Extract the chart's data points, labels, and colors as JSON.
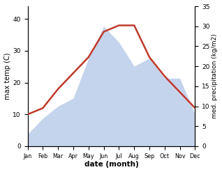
{
  "months": [
    "Jan",
    "Feb",
    "Mar",
    "Apr",
    "May",
    "Jun",
    "Jul",
    "Aug",
    "Sep",
    "Oct",
    "Nov",
    "Dec"
  ],
  "month_indices": [
    1,
    2,
    3,
    4,
    5,
    6,
    7,
    8,
    9,
    10,
    11,
    12
  ],
  "temperature": [
    10,
    12,
    18,
    23,
    28,
    36,
    38,
    38,
    28,
    22,
    17,
    12
  ],
  "precipitation": [
    3,
    7,
    10,
    12,
    22,
    30,
    26,
    20,
    22,
    17,
    17,
    8
  ],
  "temp_color": "#c0392b",
  "precip_color": "#c5d4ed",
  "title": "",
  "xlabel": "date (month)",
  "ylabel_left": "max temp (C)",
  "ylabel_right": "med. precipitation (kg/m2)",
  "ylim_left": [
    0,
    44
  ],
  "ylim_right": [
    0,
    35
  ],
  "yticks_left": [
    0,
    10,
    20,
    30,
    40
  ],
  "yticks_right": [
    0,
    5,
    10,
    15,
    20,
    25,
    30,
    35
  ],
  "background_color": "#ffffff",
  "temp_linewidth": 1.8,
  "fig_width": 3.18,
  "fig_height": 2.47,
  "dpi": 100
}
